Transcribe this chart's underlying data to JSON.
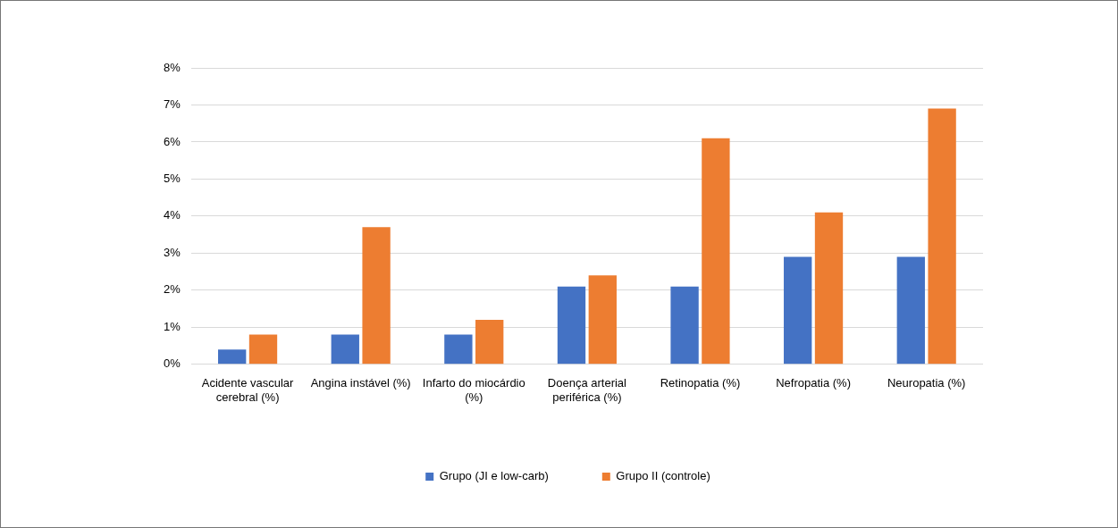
{
  "chart_data": {
    "type": "bar",
    "categories": [
      "Acidente vascular cerebral (%)",
      "Angina instável (%)",
      "Infarto do miocárdio (%)",
      "Doença arterial periférica (%)",
      "Retinopatia (%)",
      "Nefropatia (%)",
      "Neuropatia (%)"
    ],
    "series": [
      {
        "name": "Grupo (JI e low-carb)",
        "color": "#4472c4",
        "values": [
          0.4,
          0.8,
          0.8,
          2.1,
          2.1,
          2.9,
          2.9
        ]
      },
      {
        "name": "Grupo II (controle)",
        "color": "#ed7d31",
        "values": [
          0.8,
          3.7,
          1.2,
          2.4,
          6.1,
          4.1,
          6.9
        ]
      }
    ],
    "ylim": [
      0,
      8
    ],
    "yticks": [
      {
        "value": 0,
        "label": "0%"
      },
      {
        "value": 1,
        "label": "1%"
      },
      {
        "value": 2,
        "label": "2%"
      },
      {
        "value": 3,
        "label": "3%"
      },
      {
        "value": 4,
        "label": "4%"
      },
      {
        "value": 5,
        "label": "5%"
      },
      {
        "value": 6,
        "label": "6%"
      },
      {
        "value": 7,
        "label": "7%"
      },
      {
        "value": 8,
        "label": "8%"
      }
    ],
    "grid": "y",
    "legend": "bottom"
  }
}
